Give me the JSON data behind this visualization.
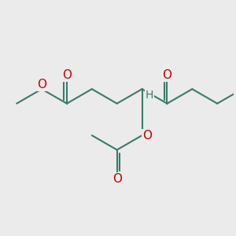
{
  "bg_color": "#ebebeb",
  "bond_color": "#3a7a6a",
  "o_color": "#cc0000",
  "h_color": "#3a7a6a",
  "line_width": 1.5,
  "font_size_atoms": 11,
  "font_size_H": 10,
  "figsize": [
    3.0,
    3.0
  ],
  "dpi": 100,
  "xlim": [
    -0.5,
    7.5
  ],
  "ylim": [
    -3.5,
    2.5
  ]
}
